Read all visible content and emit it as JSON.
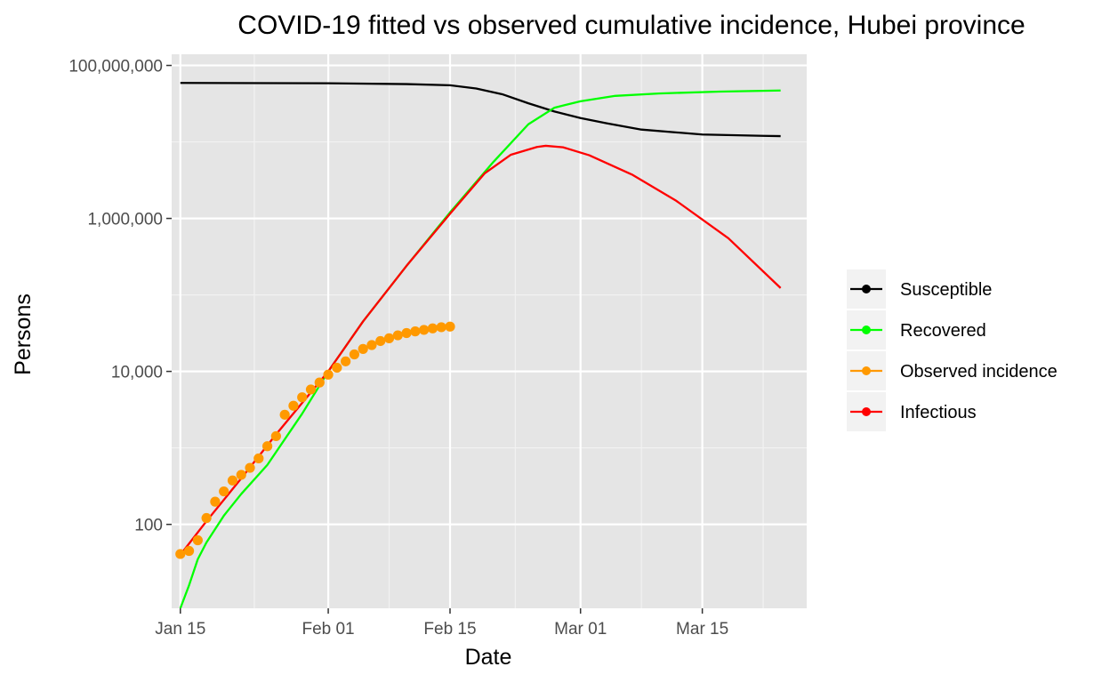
{
  "chart_data": {
    "type": "line",
    "title": "COVID-19 fitted vs observed cumulative incidence, Hubei province",
    "xlabel": "Date",
    "ylabel": "Persons",
    "y_scale": "log10",
    "ylim": [
      8,
      140000000
    ],
    "xlim": [
      "2020-01-14",
      "2020-03-27"
    ],
    "x_ticks": [
      {
        "date": "2020-01-15",
        "label": "Jan 15"
      },
      {
        "date": "2020-02-01",
        "label": "Feb 01"
      },
      {
        "date": "2020-02-15",
        "label": "Feb 15"
      },
      {
        "date": "2020-03-01",
        "label": "Mar 01"
      },
      {
        "date": "2020-03-15",
        "label": "Mar 15"
      }
    ],
    "y_ticks": [
      {
        "value": 100,
        "label": "100"
      },
      {
        "value": 10000,
        "label": "10,000"
      },
      {
        "value": 1000000,
        "label": "1,000,000"
      },
      {
        "value": 100000000,
        "label": "100,000,000"
      }
    ],
    "background": "#e5e5e5",
    "grid": true,
    "legend_position": "right",
    "legend": [
      {
        "name": "Susceptible",
        "color": "#000000"
      },
      {
        "name": "Recovered",
        "color": "#00ff00"
      },
      {
        "name": "Observed incidence",
        "color": "#ff9900"
      },
      {
        "name": "Infectious",
        "color": "#ff0000"
      }
    ],
    "series": [
      {
        "name": "Susceptible",
        "color": "#000000",
        "kind": "line",
        "points": [
          [
            "2020-01-15",
            59000000
          ],
          [
            "2020-02-01",
            58500000
          ],
          [
            "2020-02-10",
            57000000
          ],
          [
            "2020-02-15",
            55000000
          ],
          [
            "2020-02-18",
            50000000
          ],
          [
            "2020-02-21",
            42000000
          ],
          [
            "2020-02-24",
            32000000
          ],
          [
            "2020-02-27",
            25000000
          ],
          [
            "2020-03-01",
            20500000
          ],
          [
            "2020-03-04",
            17500000
          ],
          [
            "2020-03-08",
            14500000
          ],
          [
            "2020-03-15",
            12500000
          ],
          [
            "2020-03-22",
            12000000
          ],
          [
            "2020-03-24",
            11900000
          ]
        ]
      },
      {
        "name": "Recovered",
        "color": "#00ff00",
        "kind": "line",
        "points": [
          [
            "2020-01-15",
            8
          ],
          [
            "2020-01-16",
            16
          ],
          [
            "2020-01-17",
            35
          ],
          [
            "2020-01-18",
            58
          ],
          [
            "2020-01-20",
            130
          ],
          [
            "2020-01-22",
            250
          ],
          [
            "2020-01-25",
            600
          ],
          [
            "2020-01-29",
            2800
          ],
          [
            "2020-02-01",
            10000
          ],
          [
            "2020-02-05",
            45000
          ],
          [
            "2020-02-10",
            240000
          ],
          [
            "2020-02-15",
            1200000
          ],
          [
            "2020-02-20",
            5500000
          ],
          [
            "2020-02-24",
            17000000
          ],
          [
            "2020-02-27",
            28000000
          ],
          [
            "2020-03-01",
            34000000
          ],
          [
            "2020-03-05",
            40000000
          ],
          [
            "2020-03-10",
            43000000
          ],
          [
            "2020-03-17",
            45500000
          ],
          [
            "2020-03-24",
            47000000
          ]
        ]
      },
      {
        "name": "Infectious",
        "color": "#ff0000",
        "kind": "line",
        "points": [
          [
            "2020-01-15",
            40
          ],
          [
            "2020-01-18",
            110
          ],
          [
            "2020-01-22",
            400
          ],
          [
            "2020-01-26",
            1500
          ],
          [
            "2020-02-01",
            10000
          ],
          [
            "2020-02-05",
            45000
          ],
          [
            "2020-02-10",
            240000
          ],
          [
            "2020-02-15",
            1150000
          ],
          [
            "2020-02-19",
            3900000
          ],
          [
            "2020-02-22",
            6800000
          ],
          [
            "2020-02-25",
            8600000
          ],
          [
            "2020-02-26",
            8900000
          ],
          [
            "2020-02-28",
            8500000
          ],
          [
            "2020-03-02",
            6700000
          ],
          [
            "2020-03-07",
            3700000
          ],
          [
            "2020-03-12",
            1700000
          ],
          [
            "2020-03-18",
            550000
          ],
          [
            "2020-03-24",
            123000
          ]
        ]
      },
      {
        "name": "Observed incidence",
        "color": "#ff9900",
        "kind": "points",
        "points": [
          [
            "2020-01-15",
            41
          ],
          [
            "2020-01-16",
            45
          ],
          [
            "2020-01-17",
            62
          ],
          [
            "2020-01-18",
            121
          ],
          [
            "2020-01-19",
            198
          ],
          [
            "2020-01-20",
            270
          ],
          [
            "2020-01-21",
            375
          ],
          [
            "2020-01-22",
            444
          ],
          [
            "2020-01-23",
            549
          ],
          [
            "2020-01-24",
            729
          ],
          [
            "2020-01-25",
            1052
          ],
          [
            "2020-01-26",
            1423
          ],
          [
            "2020-01-27",
            2714
          ],
          [
            "2020-01-28",
            3554
          ],
          [
            "2020-01-29",
            4586
          ],
          [
            "2020-01-30",
            5806
          ],
          [
            "2020-01-31",
            7153
          ],
          [
            "2020-02-01",
            9074
          ],
          [
            "2020-02-02",
            11177
          ],
          [
            "2020-02-03",
            13522
          ],
          [
            "2020-02-04",
            16678
          ],
          [
            "2020-02-05",
            19665
          ],
          [
            "2020-02-06",
            22112
          ],
          [
            "2020-02-07",
            24953
          ],
          [
            "2020-02-08",
            27100
          ],
          [
            "2020-02-09",
            29631
          ],
          [
            "2020-02-10",
            31728
          ],
          [
            "2020-02-11",
            33366
          ],
          [
            "2020-02-12",
            34874
          ],
          [
            "2020-02-13",
            36500
          ],
          [
            "2020-02-14",
            37800
          ],
          [
            "2020-02-15",
            38500
          ]
        ]
      }
    ]
  }
}
